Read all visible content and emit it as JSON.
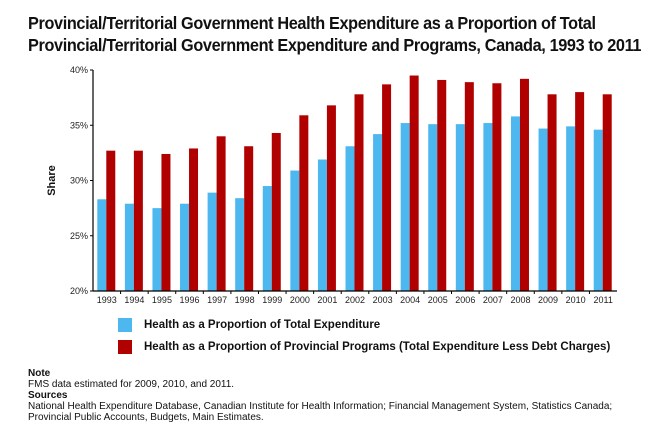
{
  "chart_data": {
    "type": "bar",
    "title": "Provincial/Territorial Government Health Expenditure as a Proportion of Total Provincial/Territorial Government Expenditure and Programs, Canada, 1993 to 2011",
    "title_line1": "Provincial/Territorial Government Health Expenditure as a Proportion of Total",
    "title_line2": "Provincial/Territorial Government Expenditure and Programs, Canada, 1993 to 2011",
    "xlabel": "",
    "ylabel": "Share",
    "ylim": [
      20,
      40
    ],
    "yticks": [
      "20%",
      "25%",
      "30%",
      "35%",
      "40%"
    ],
    "grid": false,
    "legend_position": "bottom",
    "categories": [
      "1993",
      "1994",
      "1995",
      "1996",
      "1997",
      "1998",
      "1999",
      "2000",
      "2001",
      "2002",
      "2003",
      "2004",
      "2005",
      "2006",
      "2007",
      "2008",
      "2009",
      "2010",
      "2011"
    ],
    "series": [
      {
        "name": "Health as a Proportion of Total Expenditure",
        "color": "#4db8f0",
        "values": [
          28.3,
          27.9,
          27.5,
          27.9,
          28.9,
          28.4,
          29.5,
          30.9,
          31.9,
          33.1,
          34.2,
          35.2,
          35.1,
          35.1,
          35.2,
          35.8,
          34.7,
          34.9,
          34.6
        ]
      },
      {
        "name": "Health as a Proportion of Provincial Programs (Total Expenditure Less Debt Charges)",
        "color": "#b00000",
        "values": [
          32.7,
          32.7,
          32.4,
          32.9,
          34.0,
          33.1,
          34.3,
          35.9,
          36.8,
          37.8,
          38.7,
          39.5,
          39.1,
          38.9,
          38.8,
          39.2,
          37.8,
          38.0,
          37.8
        ]
      }
    ]
  },
  "notes": {
    "note_heading": "Note",
    "note_text": "FMS data estimated for 2009, 2010, and 2011.",
    "sources_heading": "Sources",
    "sources_text": "National Health Expenditure Database, Canadian Institute for Health Information; Financial Management System, Statistics Canada; Provincial Public Accounts, Budgets, Main Estimates."
  }
}
